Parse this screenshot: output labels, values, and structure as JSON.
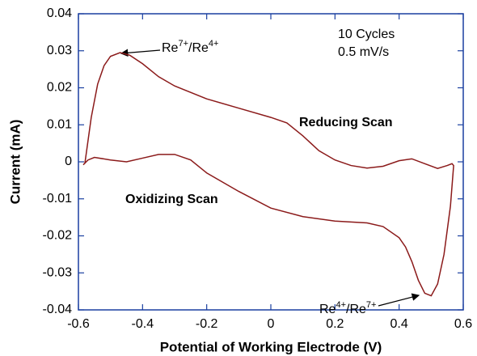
{
  "chart_data": {
    "type": "line",
    "xlabel": "Potential of Working Electrode (V)",
    "ylabel": "Current (mA)",
    "xlim": [
      -0.6,
      0.6
    ],
    "xticks": [
      -0.6,
      -0.4,
      -0.2,
      0,
      0.2,
      0.4,
      0.6
    ],
    "ylim": [
      -0.04,
      0.04
    ],
    "yticks": [
      -0.04,
      -0.03,
      -0.02,
      -0.01,
      0,
      0.01,
      0.02,
      0.03,
      0.04
    ],
    "series": [
      {
        "color": "#8b1a1a",
        "x": [
          -0.58,
          -0.56,
          -0.54,
          -0.52,
          -0.5,
          -0.47,
          -0.44,
          -0.4,
          -0.35,
          -0.3,
          -0.2,
          -0.1,
          0,
          0.05,
          0.1,
          0.15,
          0.2,
          0.25,
          0.3,
          0.35,
          0.4,
          0.44,
          0.48,
          0.52,
          0.55,
          0.565,
          0.57,
          0.56,
          0.54,
          0.52,
          0.5,
          0.48,
          0.46,
          0.44,
          0.42,
          0.4,
          0.35,
          0.3,
          0.2,
          0.1,
          0,
          -0.1,
          -0.2,
          -0.25,
          -0.3,
          -0.35,
          -0.4,
          -0.45,
          -0.5,
          -0.55,
          -0.57,
          -0.585
        ],
        "values": [
          -0.0005,
          0.012,
          0.021,
          0.026,
          0.0285,
          0.0295,
          0.0288,
          0.0265,
          0.023,
          0.0205,
          0.017,
          0.0145,
          0.012,
          0.0105,
          0.007,
          0.003,
          0.0005,
          -0.001,
          -0.0017,
          -0.0012,
          0.0003,
          0.0008,
          -0.0005,
          -0.0018,
          -0.001,
          -0.0005,
          -0.001,
          -0.012,
          -0.025,
          -0.033,
          -0.0362,
          -0.0355,
          -0.032,
          -0.027,
          -0.023,
          -0.0205,
          -0.0175,
          -0.0165,
          -0.016,
          -0.0148,
          -0.0125,
          -0.008,
          -0.003,
          0.0005,
          0.002,
          0.002,
          0.001,
          0,
          0.0005,
          0.0012,
          0.0005,
          -0.0008
        ]
      }
    ],
    "annotations": [
      {
        "parts": [
          "Re",
          "7+",
          "/Re",
          "4+"
        ]
      },
      {
        "parts": [
          "Re",
          "4+",
          "/Re",
          "7+"
        ]
      },
      {
        "text": "10 Cycles"
      },
      {
        "text": "0.5 mV/s"
      },
      {
        "text": "Reducing Scan"
      },
      {
        "text": "Oxidizing Scan"
      }
    ]
  }
}
